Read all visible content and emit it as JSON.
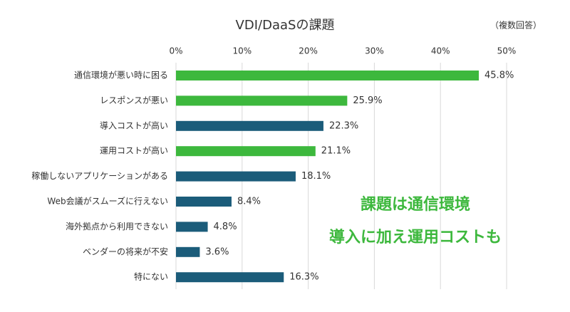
{
  "chart_data": {
    "type": "hbar",
    "title": "VDI/DaaSの課題",
    "note": "（複数回答）",
    "categories": [
      "通信環境が悪い時に困る",
      "レスポンスが悪い",
      "導入コストが高い",
      "運用コストが高い",
      "稼働しないアプリケーションがある",
      "Web会議がスムーズに行えない",
      "海外拠点から利用できない",
      "ベンダーの将来が不安",
      "特にない"
    ],
    "values": [
      45.8,
      25.9,
      22.3,
      21.1,
      18.1,
      8.4,
      4.8,
      3.6,
      16.3
    ],
    "value_labels": [
      "45.8%",
      "25.9%",
      "22.3%",
      "21.1%",
      "18.1%",
      "8.4%",
      "4.8%",
      "3.6%",
      "16.3%"
    ],
    "colors": [
      "#3db83d",
      "#3db83d",
      "#1b5c7a",
      "#3db83d",
      "#1b5c7a",
      "#1b5c7a",
      "#1b5c7a",
      "#1b5c7a",
      "#1b5c7a"
    ],
    "xlim": [
      0,
      50
    ],
    "xticks": [
      {
        "value": 0,
        "label": "0%"
      },
      {
        "value": 10,
        "label": "10%"
      },
      {
        "value": 20,
        "label": "20%"
      },
      {
        "value": 30,
        "label": "30%"
      },
      {
        "value": 40,
        "label": "40%"
      },
      {
        "value": 50,
        "label": "50%"
      }
    ],
    "grid": true,
    "annotations": [
      "課題は通信環境",
      "導入に加え運用コストも"
    ],
    "annotation_color": "#3db83d"
  }
}
